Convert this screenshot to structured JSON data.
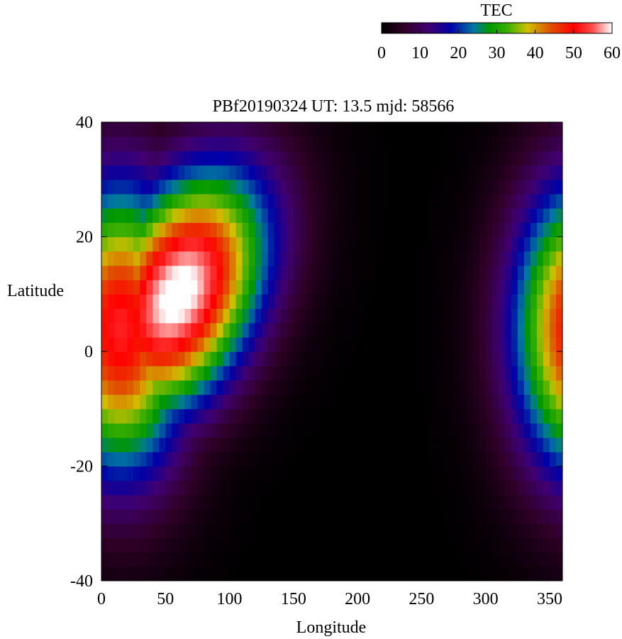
{
  "chart_data": {
    "type": "heatmap",
    "title": "PBf20190324  UT: 13.5  mjd: 58566",
    "xlabel": "Longitude",
    "ylabel": "Latitude",
    "xlim": [
      0,
      360
    ],
    "ylim": [
      -40,
      40
    ],
    "x_ticks": [
      "0",
      "50",
      "100",
      "150",
      "200",
      "250",
      "300",
      "350"
    ],
    "y_ticks": [
      "40",
      "20",
      "0",
      "-20",
      "-40"
    ],
    "grid": false,
    "colorbar": {
      "label": "TEC",
      "range": [
        0,
        60
      ],
      "ticks": [
        "0",
        "10",
        "20",
        "30",
        "40",
        "50",
        "60"
      ],
      "colormap": [
        {
          "value": 0,
          "color": "#000000"
        },
        {
          "value": 6,
          "color": "#300028"
        },
        {
          "value": 12,
          "color": "#400070"
        },
        {
          "value": 18,
          "color": "#0000a8"
        },
        {
          "value": 24,
          "color": "#0078a0"
        },
        {
          "value": 28,
          "color": "#009800"
        },
        {
          "value": 33,
          "color": "#40b000"
        },
        {
          "value": 38,
          "color": "#d0c000"
        },
        {
          "value": 44,
          "color": "#e05000"
        },
        {
          "value": 50,
          "color": "#ff0000"
        },
        {
          "value": 55,
          "color": "#ff5050"
        },
        {
          "value": 60,
          "color": "#ffffff"
        }
      ]
    },
    "grid_resolution": {
      "longitude_step": 5,
      "latitude_step": 2.5
    },
    "features": [
      {
        "name": "primary equatorial anomaly",
        "peak_tec": 62,
        "lon_center": 60,
        "lon_width": 48,
        "lat_center": 10,
        "lat_width": 14,
        "lat_tilt_per_deg_lon": 0.12
      },
      {
        "name": "secondary equatorial anomaly",
        "peak_tec": 52,
        "lon_center": 375,
        "lon_width": 38,
        "lat_center": 4,
        "lat_width": 18,
        "lat_tilt_per_deg_lon": 0.0
      }
    ]
  }
}
